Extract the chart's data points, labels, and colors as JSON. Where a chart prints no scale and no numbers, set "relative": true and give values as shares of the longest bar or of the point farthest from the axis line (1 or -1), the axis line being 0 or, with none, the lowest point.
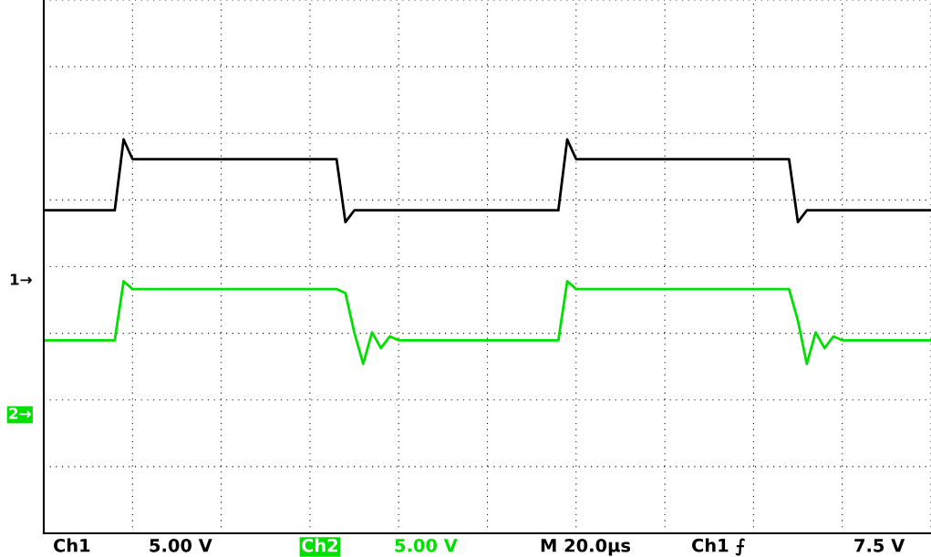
{
  "chart_data": {
    "type": "line",
    "relative": true,
    "grid": true,
    "legend": false,
    "marker": "none",
    "line_style": "solid",
    "categories": [
      null,
      null,
      null,
      null,
      null,
      null,
      null,
      null,
      null,
      null,
      null,
      null,
      null,
      null,
      null,
      null,
      null,
      null,
      null,
      null,
      null,
      null,
      null,
      null,
      null,
      null,
      null,
      null,
      null,
      null,
      null,
      null,
      null,
      null,
      null,
      null,
      null,
      null,
      null,
      null,
      null,
      null,
      null,
      null,
      null,
      null,
      null,
      null,
      null,
      null,
      null,
      null,
      null,
      null,
      null,
      null,
      null,
      null,
      null,
      null,
      null,
      null,
      null,
      null,
      null,
      null,
      null,
      null,
      null,
      null,
      null,
      null,
      null,
      null,
      null,
      null,
      null,
      null,
      null,
      null,
      null,
      null,
      null,
      null,
      null,
      null,
      null,
      null,
      null,
      null,
      null,
      null,
      null,
      null,
      null,
      null,
      null,
      null,
      null,
      null,
      null
    ],
    "series": [
      {
        "color": "#000000",
        "values": [
          0.82,
          0.82,
          0.82,
          0.82,
          0.82,
          0.82,
          0.82,
          0.82,
          0.82,
          1.0,
          0.95,
          0.95,
          0.95,
          0.95,
          0.95,
          0.95,
          0.95,
          0.95,
          0.95,
          0.95,
          0.95,
          0.95,
          0.95,
          0.95,
          0.95,
          0.95,
          0.95,
          0.95,
          0.95,
          0.95,
          0.95,
          0.95,
          0.95,
          0.95,
          0.79,
          0.82,
          0.82,
          0.82,
          0.82,
          0.82,
          0.82,
          0.82,
          0.82,
          0.82,
          0.82,
          0.82,
          0.82,
          0.82,
          0.82,
          0.82,
          0.82,
          0.82,
          0.82,
          0.82,
          0.82,
          0.82,
          0.82,
          0.82,
          0.82,
          1.0,
          0.95,
          0.95,
          0.95,
          0.95,
          0.95,
          0.95,
          0.95,
          0.95,
          0.95,
          0.95,
          0.95,
          0.95,
          0.95,
          0.95,
          0.95,
          0.95,
          0.95,
          0.95,
          0.95,
          0.95,
          0.95,
          0.95,
          0.95,
          0.95,
          0.95,
          0.79,
          0.82,
          0.82,
          0.82,
          0.82,
          0.82,
          0.82,
          0.82,
          0.82,
          0.82,
          0.82,
          0.82,
          0.82,
          0.82,
          0.82,
          0.82
        ]
      },
      {
        "color": "#00e000",
        "values": [
          0.49,
          0.49,
          0.49,
          0.49,
          0.49,
          0.49,
          0.49,
          0.49,
          0.49,
          0.64,
          0.62,
          0.62,
          0.62,
          0.62,
          0.62,
          0.62,
          0.62,
          0.62,
          0.62,
          0.62,
          0.62,
          0.62,
          0.62,
          0.62,
          0.62,
          0.62,
          0.62,
          0.62,
          0.62,
          0.62,
          0.62,
          0.62,
          0.62,
          0.62,
          0.61,
          0.51,
          0.43,
          0.51,
          0.47,
          0.5,
          0.49,
          0.49,
          0.49,
          0.49,
          0.49,
          0.49,
          0.49,
          0.49,
          0.49,
          0.49,
          0.49,
          0.49,
          0.49,
          0.49,
          0.49,
          0.49,
          0.49,
          0.49,
          0.49,
          0.64,
          0.62,
          0.62,
          0.62,
          0.62,
          0.62,
          0.62,
          0.62,
          0.62,
          0.62,
          0.62,
          0.62,
          0.62,
          0.62,
          0.62,
          0.62,
          0.62,
          0.62,
          0.62,
          0.62,
          0.62,
          0.62,
          0.62,
          0.62,
          0.62,
          0.62,
          0.54,
          0.43,
          0.51,
          0.47,
          0.5,
          0.49,
          0.49,
          0.49,
          0.49,
          0.49,
          0.49,
          0.49,
          0.49,
          0.49,
          0.49,
          0.49
        ]
      }
    ],
    "annotations": [
      "Ch1",
      "5.00 V",
      "Ch2",
      "5.00 V",
      "M 20.0µs",
      "Ch1 ⨍",
      "7.5 V",
      "1→",
      "2→"
    ]
  }
}
